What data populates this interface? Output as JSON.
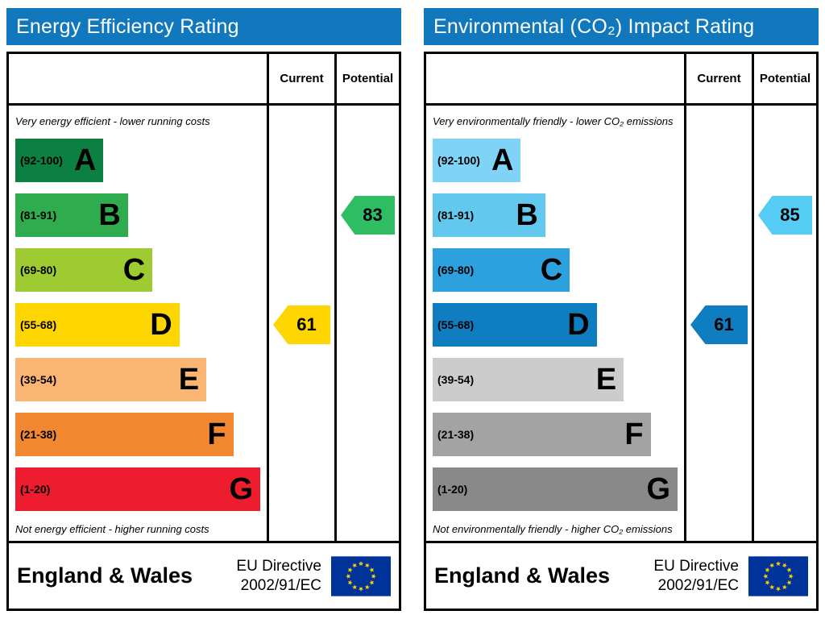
{
  "panels": [
    {
      "title": "Energy Efficiency Rating",
      "title_bg": "#1278be",
      "columns": {
        "current": "Current",
        "potential": "Potential"
      },
      "top_note": "Very energy efficient - lower running costs",
      "bottom_note": "Not energy efficient - higher running costs",
      "bands": [
        {
          "grade": "A",
          "range": "(92-100)",
          "color": "#0c8040",
          "width": 36
        },
        {
          "grade": "B",
          "range": "(81-91)",
          "color": "#2fad4e",
          "width": 46
        },
        {
          "grade": "C",
          "range": "(69-80)",
          "color": "#9ecb31",
          "width": 56
        },
        {
          "grade": "D",
          "range": "(55-68)",
          "color": "#ffd500",
          "width": 67
        },
        {
          "grade": "E",
          "range": "(39-54)",
          "color": "#fbb573",
          "width": 78
        },
        {
          "grade": "F",
          "range": "(21-38)",
          "color": "#f18831",
          "width": 89
        },
        {
          "grade": "G",
          "range": "(1-20)",
          "color": "#ed1c2e",
          "width": 100
        }
      ],
      "current": {
        "value": "61",
        "band": "D",
        "color": "#ffd500"
      },
      "potential": {
        "value": "83",
        "band": "B",
        "color": "#2fbd63"
      },
      "footer": {
        "region": "England & Wales",
        "directive_line1": "EU Directive",
        "directive_line2": "2002/91/EC"
      }
    },
    {
      "title": "Environmental (CO₂) Impact Rating",
      "title_bg": "#1278be",
      "columns": {
        "current": "Current",
        "potential": "Potential"
      },
      "top_note": "Very environmentally friendly - lower CO₂ emissions",
      "bottom_note": "Not environmentally friendly - higher CO₂ emissions",
      "bands": [
        {
          "grade": "A",
          "range": "(92-100)",
          "color": "#7ed3f7",
          "width": 36
        },
        {
          "grade": "B",
          "range": "(81-91)",
          "color": "#62c8ee",
          "width": 46
        },
        {
          "grade": "C",
          "range": "(69-80)",
          "color": "#2da1dd",
          "width": 56
        },
        {
          "grade": "D",
          "range": "(55-68)",
          "color": "#0f7ec0",
          "width": 67
        },
        {
          "grade": "E",
          "range": "(39-54)",
          "color": "#cccccc",
          "width": 78
        },
        {
          "grade": "F",
          "range": "(21-38)",
          "color": "#a3a3a3",
          "width": 89
        },
        {
          "grade": "G",
          "range": "(1-20)",
          "color": "#898989",
          "width": 100
        }
      ],
      "current": {
        "value": "61",
        "band": "D",
        "color": "#0f7ec0"
      },
      "potential": {
        "value": "85",
        "band": "B",
        "color": "#54ccf4"
      },
      "footer": {
        "region": "England & Wales",
        "directive_line1": "EU Directive",
        "directive_line2": "2002/91/EC"
      }
    }
  ],
  "eu_flag": {
    "background": "#003399",
    "star": "#ffcc00"
  },
  "chart_data": [
    {
      "type": "bar",
      "title": "Energy Efficiency Rating",
      "categories": [
        "A (92-100)",
        "B (81-91)",
        "C (69-80)",
        "D (55-68)",
        "E (39-54)",
        "F (21-38)",
        "G (1-20)"
      ],
      "series": [
        {
          "name": "Current",
          "values": [
            61
          ],
          "band": "D"
        },
        {
          "name": "Potential",
          "values": [
            83
          ],
          "band": "B"
        }
      ],
      "xlim": [
        1,
        100
      ],
      "annotations": [
        "Very energy efficient - lower running costs",
        "Not energy efficient - higher running costs",
        "England & Wales",
        "EU Directive 2002/91/EC"
      ]
    },
    {
      "type": "bar",
      "title": "Environmental (CO₂) Impact Rating",
      "categories": [
        "A (92-100)",
        "B (81-91)",
        "C (69-80)",
        "D (55-68)",
        "E (39-54)",
        "F (21-38)",
        "G (1-20)"
      ],
      "series": [
        {
          "name": "Current",
          "values": [
            61
          ],
          "band": "D"
        },
        {
          "name": "Potential",
          "values": [
            85
          ],
          "band": "B"
        }
      ],
      "xlim": [
        1,
        100
      ],
      "annotations": [
        "Very environmentally friendly - lower CO₂ emissions",
        "Not environmentally friendly - higher CO₂ emissions",
        "England & Wales",
        "EU Directive 2002/91/EC"
      ]
    }
  ]
}
